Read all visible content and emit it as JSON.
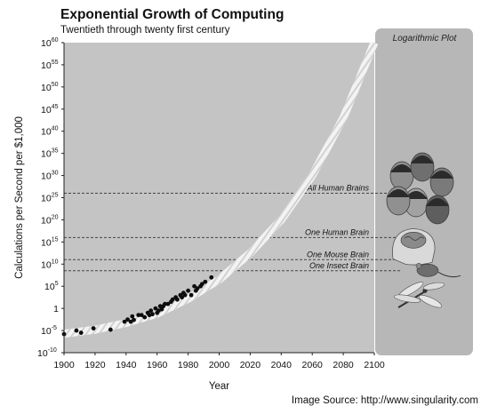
{
  "page": {
    "title": "Exponential Growth of Computing",
    "subtitle": "Twentieth through twenty first century",
    "source": "Image Source: http://www.singularity.com"
  },
  "panel": {
    "title": "Logarithmic Plot",
    "illustrations": [
      "human-faces-group-icon",
      "human-brain-head-icon",
      "mouse-icon",
      "dragonfly-insect-icon"
    ]
  },
  "colors": {
    "plot_background": "#c4c4c4",
    "panel_background": "#b7b7b7",
    "trend_band": "#ececec",
    "points": "#0d0d0d",
    "reference_lines": "#444444"
  },
  "chart_data": {
    "type": "scatter",
    "title": "Exponential Growth of Computing",
    "subtitle": "Twentieth through twenty first century",
    "xlabel": "Year",
    "ylabel": "Calculations per Second per $1,000",
    "xlim": [
      1900,
      2100
    ],
    "ylim_exponent": [
      -10,
      60
    ],
    "y_scale": "log",
    "grid": false,
    "x_ticks": [
      1900,
      1920,
      1940,
      1960,
      1980,
      2000,
      2020,
      2040,
      2060,
      2080,
      2100
    ],
    "y_ticks": [
      {
        "base": "10",
        "exp": "-10"
      },
      {
        "base": "10",
        "exp": "-5"
      },
      {
        "base": "1",
        "exp": ""
      },
      {
        "base": "10",
        "exp": "5"
      },
      {
        "base": "10",
        "exp": "10"
      },
      {
        "base": "10",
        "exp": "15"
      },
      {
        "base": "10",
        "exp": "20"
      },
      {
        "base": "10",
        "exp": "25"
      },
      {
        "base": "10",
        "exp": "30"
      },
      {
        "base": "10",
        "exp": "35"
      },
      {
        "base": "10",
        "exp": "40"
      },
      {
        "base": "10",
        "exp": "45"
      },
      {
        "base": "10",
        "exp": "50"
      },
      {
        "base": "10",
        "exp": "55"
      },
      {
        "base": "10",
        "exp": "60"
      }
    ],
    "reference_lines": [
      {
        "label": "All Human Brains",
        "log10_value": 26
      },
      {
        "label": "One Human Brain",
        "log10_value": 16
      },
      {
        "label": "One Mouse Brain",
        "log10_value": 11
      },
      {
        "label": "One Insect Brain",
        "log10_value": 8.5
      }
    ],
    "trend": {
      "x": [
        1900,
        1920,
        1940,
        1960,
        1980,
        2000,
        2020,
        2040,
        2060,
        2080,
        2100
      ],
      "log10_y": [
        -5.7,
        -4.8,
        -3.3,
        -1.2,
        2.2,
        6.5,
        12.5,
        20,
        30,
        43,
        60
      ]
    },
    "points": {
      "x": [
        1900,
        1908,
        1911,
        1919,
        1930,
        1939,
        1941,
        1943,
        1944,
        1945,
        1948,
        1950,
        1952,
        1954,
        1955,
        1956,
        1957,
        1959,
        1960,
        1961,
        1962,
        1963,
        1964,
        1965,
        1967,
        1969,
        1970,
        1972,
        1973,
        1975,
        1976,
        1977,
        1978,
        1980,
        1982,
        1984,
        1985,
        1986,
        1988,
        1989,
        1991,
        1995
      ],
      "log10_y": [
        -5.8,
        -5,
        -5.5,
        -4.5,
        -4.8,
        -3,
        -2.5,
        -3,
        -1.8,
        -2.6,
        -1.5,
        -1.5,
        -2,
        -1,
        -1.5,
        -0.5,
        -1.3,
        0,
        -1,
        -0.5,
        0.5,
        -0.2,
        0.5,
        1,
        1,
        1.5,
        2,
        2.5,
        2,
        3,
        2.5,
        3.5,
        3,
        4,
        3,
        5,
        4,
        4.5,
        5,
        5.5,
        6,
        7
      ]
    }
  }
}
